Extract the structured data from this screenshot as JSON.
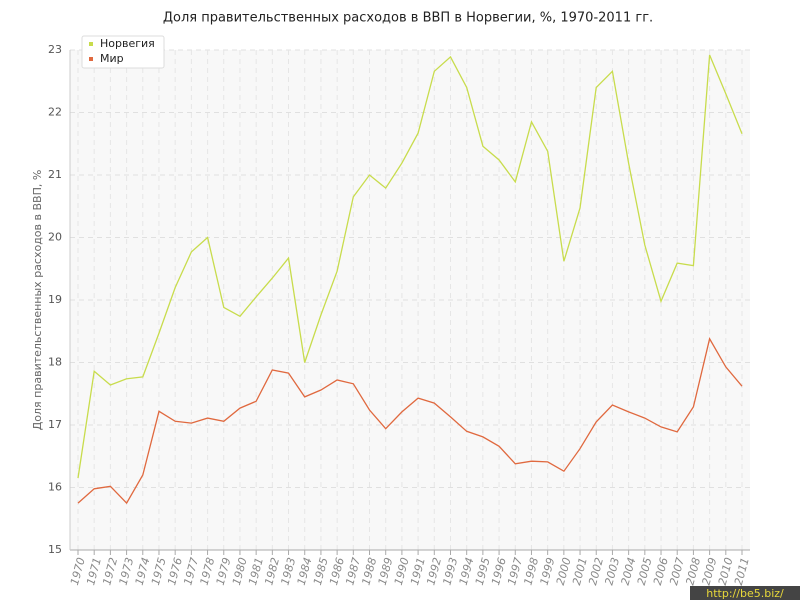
{
  "chart_data": {
    "type": "line",
    "title": "Доля правительственных расходов в ВВП в Норвегии, %, 1970-2011 гг.",
    "y_label": "Доля правительственных расходов в ВВП, %",
    "watermark": "http://be5.biz/",
    "categories": [
      "1970",
      "1971",
      "1972",
      "1973",
      "1974",
      "1975",
      "1976",
      "1977",
      "1978",
      "1979",
      "1980",
      "1981",
      "1982",
      "1983",
      "1984",
      "1985",
      "1986",
      "1987",
      "1988",
      "1989",
      "1990",
      "1991",
      "1992",
      "1993",
      "1994",
      "1995",
      "1996",
      "1997",
      "1998",
      "1999",
      "2000",
      "2001",
      "2002",
      "2003",
      "2004",
      "2005",
      "2006",
      "2007",
      "2008",
      "2009",
      "2010",
      "2011"
    ],
    "series": [
      {
        "name": "Норвегия",
        "color": "#c8dc4c",
        "values": [
          16.15,
          17.86,
          17.64,
          17.74,
          17.77,
          18.47,
          19.2,
          19.77,
          20.0,
          18.88,
          18.74,
          19.05,
          19.35,
          19.67,
          18.0,
          18.76,
          19.46,
          20.65,
          21.0,
          20.79,
          21.19,
          21.67,
          22.66,
          22.89,
          22.4,
          21.46,
          21.24,
          20.89,
          21.85,
          21.38,
          19.62,
          20.47,
          22.4,
          22.66,
          21.19,
          19.88,
          18.98,
          19.59,
          19.55,
          22.92,
          22.3,
          21.66
        ]
      },
      {
        "name": "Мир",
        "color": "#e0693f",
        "values": [
          15.75,
          15.98,
          16.02,
          15.75,
          16.2,
          17.22,
          17.06,
          17.03,
          17.11,
          17.06,
          17.27,
          17.38,
          17.88,
          17.83,
          17.45,
          17.56,
          17.72,
          17.66,
          17.24,
          16.94,
          17.21,
          17.43,
          17.35,
          17.13,
          16.9,
          16.81,
          16.66,
          16.38,
          16.42,
          16.41,
          16.26,
          16.62,
          17.05,
          17.32,
          17.21,
          17.11,
          16.97,
          16.89,
          17.29,
          18.38,
          17.93,
          17.62
        ]
      }
    ],
    "ylim": [
      15,
      23
    ],
    "yticks": [
      15,
      16,
      17,
      18,
      19,
      20,
      21,
      22,
      23
    ],
    "grid": true,
    "legend": "top-left"
  }
}
